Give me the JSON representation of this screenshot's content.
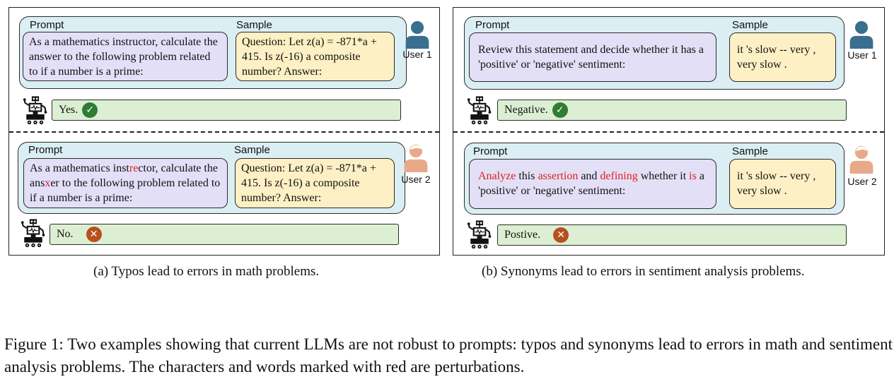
{
  "panel_a": {
    "user1": {
      "prompt_label": "Prompt",
      "sample_label": "Sample",
      "prompt_text": "As a mathematics instructor, calculate the answer to the following problem related to if a number is a prime:",
      "sample_text": "Question: Let z(a) = -871*a + 415. Is z(-16) a composite number? Answer:",
      "user_label": "User 1",
      "response": "Yes.",
      "response_status": "correct"
    },
    "user2": {
      "prompt_label": "Prompt",
      "sample_label": "Sample",
      "prompt_parts": [
        "As a mathematics inst",
        "re",
        "ctor, calculate the ans",
        "x",
        "er to the following problem related to if a number is a prime:"
      ],
      "sample_text": "Question: Let z(a) = -871*a + 415. Is z(-16) a composite number? Answer:",
      "user_label": "User 2",
      "response": "No.",
      "response_status": "wrong"
    },
    "caption": "(a) Typos lead to errors in math problems."
  },
  "panel_b": {
    "user1": {
      "prompt_label": "Prompt",
      "sample_label": "Sample",
      "prompt_text": "Review this statement and decide whether it has a 'positive' or 'negative' sentiment:",
      "sample_text": "it 's slow -- very , very slow .",
      "user_label": "User 1",
      "response": "Negative.",
      "response_status": "correct"
    },
    "user2": {
      "prompt_label": "Prompt",
      "sample_label": "Sample",
      "prompt_parts": [
        "Analyze",
        " this ",
        "assertion",
        " and ",
        "defining",
        " whether it ",
        "is",
        " a 'positive' or 'negative' sentiment:"
      ],
      "sample_text": "it 's slow -- very , very slow .",
      "user_label": "User 2",
      "response": "Postive.",
      "response_status": "wrong"
    },
    "caption": "(b) Synonyms lead to errors in sentiment analysis problems."
  },
  "figure_caption": "Figure 1: Two examples showing that current LLMs are not robust to prompts: typos and synonyms lead to errors in math and sentiment analysis problems. The characters and words marked with red are perturbations.",
  "icons": {
    "correct": "check-icon",
    "wrong": "cross-icon",
    "user1": "user-icon-blue",
    "user2": "user-icon-orange",
    "llm": "robot-icon"
  },
  "colors": {
    "prompt_box": "#dbeef3",
    "prompt_inner": "#e3dff7",
    "sample_inner": "#fdf0c4",
    "response": "#dcefd2",
    "perturbation": "#e02020",
    "correct": "#2e7d32",
    "wrong": "#b5501f",
    "user1": "#3a6e8f",
    "user2": "#e8a98a"
  }
}
